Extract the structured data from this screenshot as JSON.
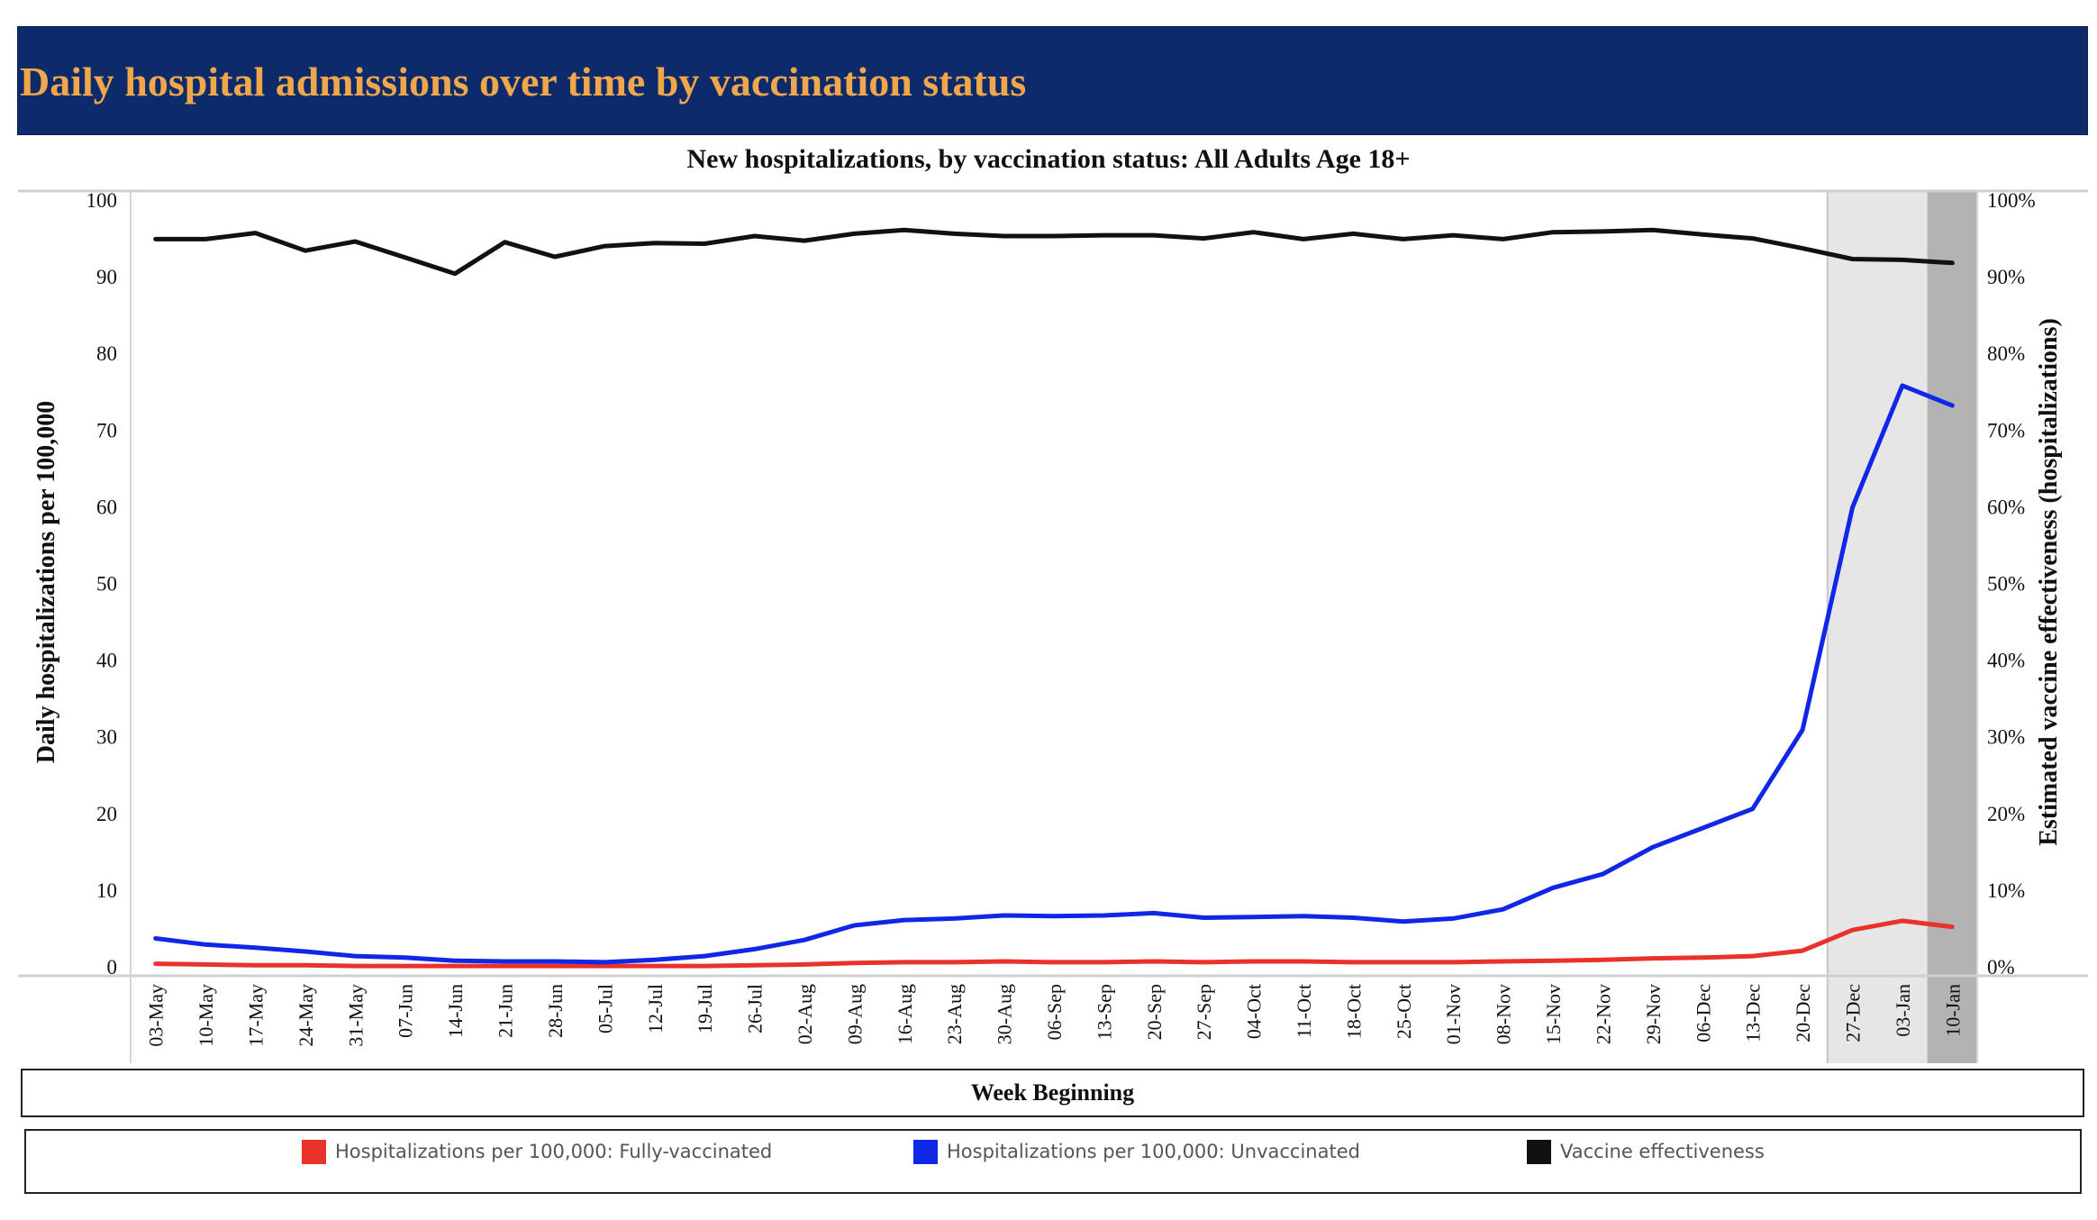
{
  "header": {
    "title": "Daily hospital admissions over time by vaccination status"
  },
  "chart_data": {
    "type": "line",
    "title": "New hospitalizations, by vaccination status: All Adults Age 18+",
    "xlabel": "Week Beginning",
    "ylabel": "Daily hospitalizations per 100,000",
    "y2label": "Estimated vaccine effectiveness (hospitalizations)",
    "ylim": [
      0,
      100
    ],
    "y2lim": [
      0,
      100
    ],
    "yticks": [
      "0",
      "10",
      "20",
      "30",
      "40",
      "50",
      "60",
      "70",
      "80",
      "90",
      "100"
    ],
    "y2ticks": [
      "0%",
      "10%",
      "20%",
      "30%",
      "40%",
      "50%",
      "60%",
      "70%",
      "80%",
      "90%",
      "100%"
    ],
    "categories": [
      "03-May",
      "10-May",
      "17-May",
      "24-May",
      "31-May",
      "07-Jun",
      "14-Jun",
      "21-Jun",
      "28-Jun",
      "05-Jul",
      "12-Jul",
      "19-Jul",
      "26-Jul",
      "02-Aug",
      "09-Aug",
      "16-Aug",
      "23-Aug",
      "30-Aug",
      "06-Sep",
      "13-Sep",
      "20-Sep",
      "27-Sep",
      "04-Oct",
      "11-Oct",
      "18-Oct",
      "25-Oct",
      "01-Nov",
      "08-Nov",
      "15-Nov",
      "22-Nov",
      "29-Nov",
      "06-Dec",
      "13-Dec",
      "20-Dec",
      "27-Dec",
      "03-Jan",
      "10-Jan"
    ],
    "shaded_ranges": [
      {
        "from": "27-Dec",
        "to": "03-Jan",
        "color": "#e6e6e6"
      },
      {
        "from": "10-Jan",
        "to": "10-Jan",
        "color": "#b3b3b3"
      }
    ],
    "series": [
      {
        "name": "Hospitalizations per 100,000: Fully-vaccinated",
        "axis": "left",
        "color": "#e8322a",
        "values": [
          0.4,
          0.3,
          0.2,
          0.2,
          0.1,
          0.1,
          0.1,
          0.1,
          0.1,
          0.1,
          0.1,
          0.1,
          0.2,
          0.3,
          0.5,
          0.6,
          0.6,
          0.7,
          0.6,
          0.6,
          0.7,
          0.6,
          0.7,
          0.7,
          0.6,
          0.6,
          0.6,
          0.7,
          0.8,
          0.9,
          1.1,
          1.2,
          1.4,
          2.1,
          4.8,
          6.0,
          5.2
        ]
      },
      {
        "name": "Hospitalizations per 100,000: Unvaccinated",
        "axis": "left",
        "color": "#1027e8",
        "values": [
          3.7,
          2.9,
          2.5,
          2.0,
          1.4,
          1.2,
          0.8,
          0.7,
          0.7,
          0.6,
          0.9,
          1.4,
          2.3,
          3.5,
          5.4,
          6.1,
          6.3,
          6.7,
          6.6,
          6.7,
          7.0,
          6.4,
          6.5,
          6.6,
          6.4,
          5.9,
          6.3,
          7.5,
          10.3,
          12.1,
          15.6,
          18.1,
          20.6,
          30.9,
          59.9,
          75.8,
          73.2
        ]
      },
      {
        "name": "Vaccine effectiveness",
        "axis": "right",
        "color": "#111111",
        "values": [
          94.9,
          94.9,
          95.7,
          93.4,
          94.6,
          92.5,
          90.4,
          94.5,
          92.6,
          94.0,
          94.4,
          94.3,
          95.3,
          94.7,
          95.6,
          96.1,
          95.6,
          95.3,
          95.3,
          95.4,
          95.4,
          95.0,
          95.8,
          94.9,
          95.6,
          94.9,
          95.4,
          94.9,
          95.8,
          95.9,
          96.1,
          95.5,
          95.0,
          93.7,
          92.3,
          92.2,
          91.8
        ]
      }
    ]
  },
  "legend": {
    "items": [
      {
        "label": "Hospitalizations per 100,000: Fully-vaccinated",
        "color": "#e8322a"
      },
      {
        "label": "Hospitalizations per 100,000: Unvaccinated",
        "color": "#1027e8"
      },
      {
        "label": "Vaccine effectiveness",
        "color": "#111111"
      }
    ]
  }
}
